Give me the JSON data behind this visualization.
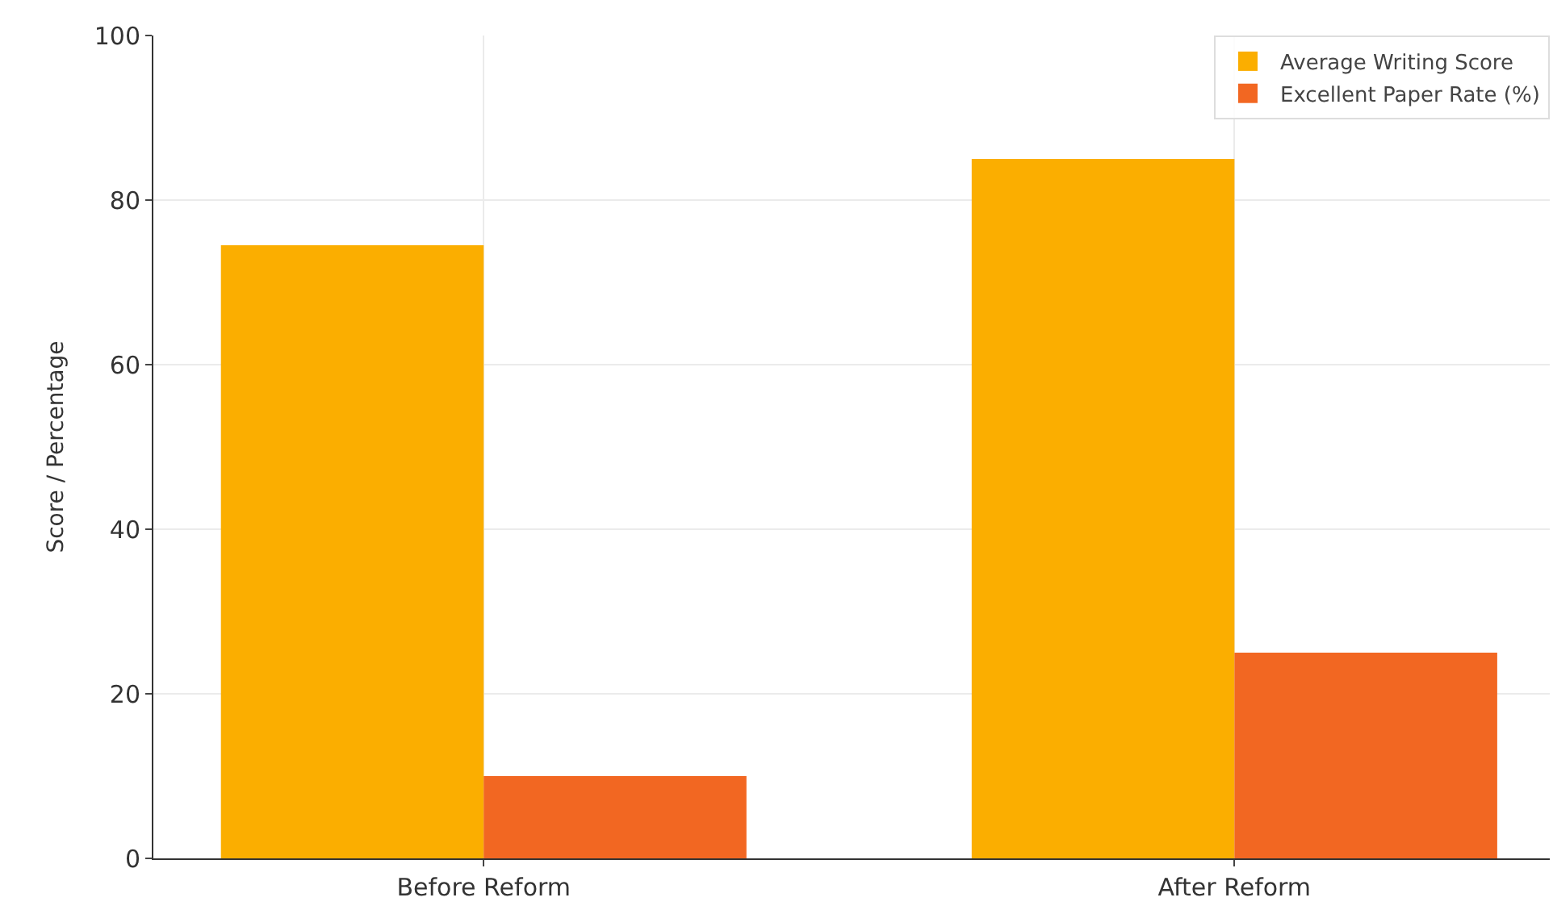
{
  "chart_data": {
    "type": "bar",
    "categories": [
      "Before Reform",
      "After Reform"
    ],
    "series": [
      {
        "name": "Average Writing Score",
        "color": "#fbae00",
        "values": [
          74.5,
          85
        ]
      },
      {
        "name": "Excellent Paper Rate (%)",
        "color": "#f26722",
        "values": [
          10,
          25
        ]
      }
    ],
    "ylabel": "Score / Percentage",
    "ylim": [
      0,
      100
    ],
    "yticks": [
      0,
      20,
      40,
      60,
      80,
      100
    ],
    "grid": true,
    "legend": "top right"
  }
}
